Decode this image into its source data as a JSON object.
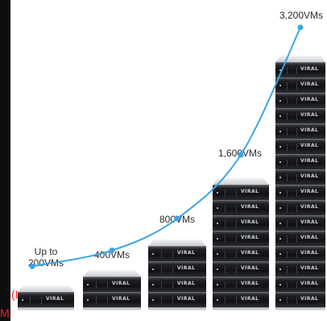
{
  "chart_data": {
    "type": "line",
    "categories": [
      "Up to 200VMs",
      "400VMs",
      "800VMs",
      "1,600VMs",
      "3,200VMs"
    ],
    "values": [
      200,
      400,
      800,
      1600,
      3200
    ],
    "series": [
      {
        "values": [
          200,
          400,
          800,
          1600,
          3200
        ]
      }
    ],
    "stacks": [
      {
        "units": 1
      },
      {
        "units": 2
      },
      {
        "units": 4
      },
      {
        "units": 8
      },
      {
        "units": 16
      }
    ],
    "curve_color": "#3aa3e8",
    "brand_label": "VIRAL"
  },
  "labels": [
    [
      "Up to",
      "200VMs"
    ],
    [
      "400VMs"
    ],
    [
      "800VMs"
    ],
    [
      "1,600VMs"
    ],
    [
      "3,200VMs"
    ]
  ],
  "overlay": {
    "line1": "(I",
    "line2": "M",
    "color": "#ff2020"
  }
}
